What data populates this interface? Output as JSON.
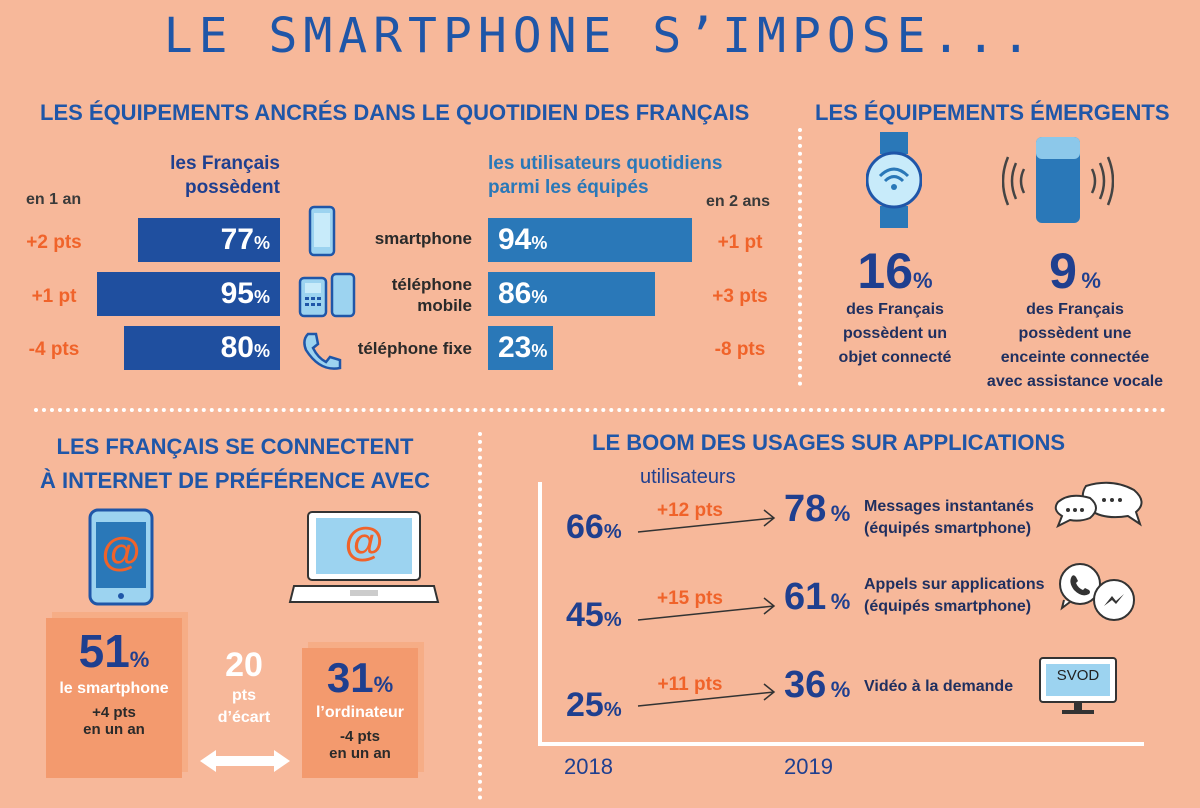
{
  "title": "LE SMARTPHONE S’IMPOSE...",
  "section1": {
    "title": "LES ÉQUIPEMENTS ANCRÉS DANS LE QUOTIDIEN DES FRANÇAIS",
    "left_head_1": "les Français",
    "left_head_2": "possèdent",
    "left_change_head": "en 1 an",
    "right_head_1": "les utilisateurs quotidiens",
    "right_head_2": "parmi les équipés",
    "right_change_head": "en 2 ans",
    "unit": "%",
    "rows": [
      {
        "device": "smartphone",
        "device2": "",
        "owned": "77",
        "change1": "+2 pts",
        "daily": "94",
        "change2": "+1 pt"
      },
      {
        "device": "téléphone",
        "device2": "mobile",
        "owned": "95",
        "change1": "+1 pt",
        "daily": "86",
        "change2": "+3 pts"
      },
      {
        "device": "téléphone fixe",
        "device2": "",
        "owned": "80",
        "change1": "-4 pts",
        "daily": "23",
        "change2": "-8 pts"
      }
    ]
  },
  "section2": {
    "title": "LES ÉQUIPEMENTS ÉMERGENTS",
    "item1": {
      "value": "16",
      "unit": "%",
      "l1": "des Français",
      "l2": "possèdent un",
      "l3": "objet connecté"
    },
    "item2": {
      "value": "9",
      "unit": "%",
      "l1": "des Français",
      "l2": "possèdent une",
      "l3": "enceinte connectée",
      "l4": "avec assistance vocale"
    }
  },
  "section3": {
    "title1": "LES FRANÇAIS SE CONNECTENT",
    "title2": "À INTERNET DE PRÉFÉRENCE AVEC",
    "at_symbol": "@",
    "smartphone": {
      "value": "51",
      "unit": "%",
      "label": "le smartphone",
      "change": "+4 pts",
      "period": "en un an"
    },
    "gap": {
      "value": "20",
      "l1": "pts",
      "l2": "d’écart"
    },
    "computer": {
      "value": "31",
      "unit": "%",
      "label": "l’ordinateur",
      "change": "-4 pts",
      "period": "en un an"
    }
  },
  "section4": {
    "title": "LE BOOM DES USAGES SUR APPLICATIONS",
    "users_label": "utilisateurs",
    "year_start": "2018",
    "year_end": "2019",
    "unit": "%",
    "rows": [
      {
        "v2018": "66",
        "change": "+12 pts",
        "v2019": "78",
        "label1": "Messages instantanés",
        "label2": "(équipés smartphone)",
        "icon": "chat-bubbles-icon"
      },
      {
        "v2018": "45",
        "change": "+15 pts",
        "v2019": "61",
        "label1": "Appels sur applications",
        "label2": "(équipés smartphone)",
        "icon": "call-app-icons"
      },
      {
        "v2018": "25",
        "change": "+11 pts",
        "v2019": "36",
        "label1": "Vidéo à la demande",
        "label2": "",
        "icon": "tv-icon",
        "badge": "SVOD"
      }
    ]
  },
  "colors": {
    "background": "#f7b89a",
    "dark_blue": "#1f4f9f",
    "mid_blue": "#2a78b8",
    "orange": "#f0632a",
    "box_orange": "#f39a6e"
  }
}
